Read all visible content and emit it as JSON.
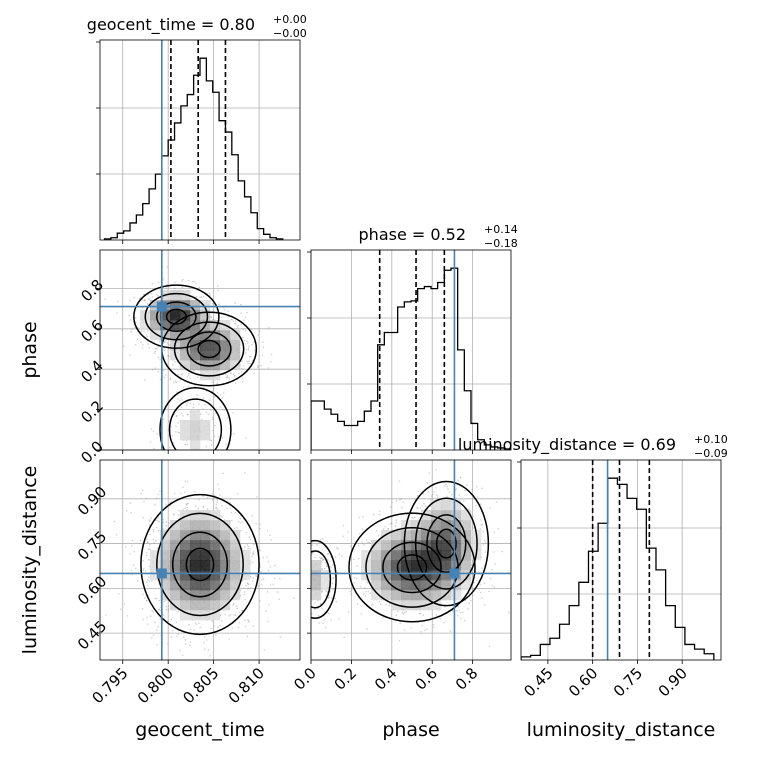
{
  "chart_data": {
    "type": "corner",
    "parameters": [
      "geocent_time",
      "phase",
      "luminosity_distance"
    ],
    "truths": {
      "geocent_time": 0.7993,
      "phase": 0.71,
      "luminosity_distance": 0.65
    },
    "ranges": {
      "geocent_time": [
        0.7925,
        0.8145
      ],
      "phase": [
        0.0,
        0.99
      ],
      "luminosity_distance": [
        0.36,
        1.03
      ]
    },
    "ticks": {
      "geocent_time": {
        "values": [
          0.795,
          0.8,
          0.805,
          0.81
        ],
        "labels": [
          "0.795",
          "0.800",
          "0.805",
          "0.810"
        ]
      },
      "phase": {
        "values": [
          0.0,
          0.2,
          0.4,
          0.6,
          0.8
        ],
        "labels": [
          "0.0",
          "0.2",
          "0.4",
          "0.6",
          "0.8"
        ]
      },
      "luminosity_distance": {
        "values": [
          0.45,
          0.6,
          0.75,
          0.9
        ],
        "labels": [
          "0.45",
          "0.60",
          "0.75",
          "0.90"
        ]
      }
    },
    "titles": {
      "geocent_time": {
        "base": "geocent_time = 0.80",
        "plus": "+0.00",
        "minus": "−0.00"
      },
      "phase": {
        "base": "phase = 0.52",
        "plus": "+0.14",
        "minus": "−0.18"
      },
      "luminosity_distance": {
        "base": "luminosity_distance = 0.69",
        "plus": "+0.10",
        "minus": "−0.09"
      }
    },
    "quantiles": {
      "geocent_time": [
        0.8003,
        0.8033,
        0.8063
      ],
      "phase": [
        0.34,
        0.52,
        0.66
      ],
      "luminosity_distance": [
        0.6,
        0.69,
        0.79
      ]
    },
    "histograms": {
      "geocent_time": {
        "edges": [
          0.793,
          0.7937,
          0.7944,
          0.7951,
          0.7958,
          0.7965,
          0.7972,
          0.7979,
          0.7986,
          0.7993,
          0.8,
          0.8007,
          0.8014,
          0.8021,
          0.8028,
          0.8035,
          0.8042,
          0.8049,
          0.8056,
          0.8063,
          0.807,
          0.8077,
          0.8084,
          0.8091,
          0.8098,
          0.8105,
          0.8112,
          0.8119,
          0.8126
        ],
        "counts": [
          1,
          2,
          6,
          8,
          15,
          22,
          32,
          45,
          58,
          74,
          88,
          103,
          118,
          128,
          145,
          160,
          140,
          130,
          105,
          95,
          75,
          52,
          38,
          24,
          10,
          5,
          2,
          1
        ]
      },
      "phase": {
        "edges": [
          0.0,
          0.033,
          0.066,
          0.099,
          0.132,
          0.165,
          0.198,
          0.231,
          0.264,
          0.297,
          0.33,
          0.363,
          0.396,
          0.429,
          0.462,
          0.495,
          0.528,
          0.561,
          0.594,
          0.627,
          0.66,
          0.693,
          0.726,
          0.759,
          0.792,
          0.825,
          0.858,
          0.891,
          0.924,
          0.957,
          0.99
        ],
        "counts": [
          48,
          48,
          40,
          35,
          28,
          24,
          24,
          28,
          38,
          48,
          103,
          115,
          115,
          140,
          145,
          146,
          158,
          160,
          158,
          164,
          176,
          178,
          98,
          58,
          26,
          10,
          5,
          3,
          2,
          1
        ]
      },
      "luminosity_distance": {
        "edges": [
          0.36,
          0.3923,
          0.4246,
          0.4569,
          0.4892,
          0.5215,
          0.5538,
          0.5861,
          0.6184,
          0.6507,
          0.683,
          0.7153,
          0.7476,
          0.7799,
          0.8122,
          0.8445,
          0.8768,
          0.9091,
          0.9414,
          0.9737,
          1.006
        ],
        "counts": [
          2,
          3,
          10,
          14,
          23,
          35,
          50,
          70,
          88,
          117,
          113,
          104,
          97,
          72,
          58,
          35,
          21,
          10,
          7,
          4
        ]
      }
    },
    "pair_densities": [
      {
        "x": "geocent_time",
        "y": "phase",
        "modes": [
          {
            "cx": 0.8009,
            "cy": 0.66,
            "sx": 0.0018,
            "sy": 0.06,
            "w": 1.0
          },
          {
            "cx": 0.8045,
            "cy": 0.5,
            "sx": 0.002,
            "sy": 0.07,
            "w": 0.85
          },
          {
            "cx": 0.803,
            "cy": 0.1,
            "sx": 0.0015,
            "sy": 0.08,
            "w": 0.22
          }
        ]
      },
      {
        "x": "geocent_time",
        "y": "luminosity_distance",
        "modes": [
          {
            "cx": 0.8035,
            "cy": 0.68,
            "sx": 0.0025,
            "sy": 0.09,
            "w": 1.0
          }
        ]
      },
      {
        "x": "phase",
        "y": "luminosity_distance",
        "modes": [
          {
            "cx": 0.5,
            "cy": 0.67,
            "sx": 0.12,
            "sy": 0.07,
            "w": 1.0
          },
          {
            "cx": 0.67,
            "cy": 0.75,
            "sx": 0.08,
            "sy": 0.08,
            "w": 0.7
          },
          {
            "cx": 0.02,
            "cy": 0.63,
            "sx": 0.04,
            "sy": 0.05,
            "w": 0.35
          }
        ]
      }
    ],
    "colors": {
      "truth": "#4682b4",
      "hist": "#000000",
      "grid": "#b0b0b0",
      "density": "#000000"
    }
  }
}
